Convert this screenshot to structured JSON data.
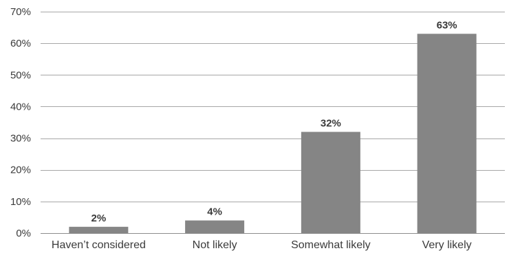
{
  "chart_data": {
    "type": "bar",
    "title": "",
    "xlabel": "",
    "ylabel": "",
    "categories": [
      "Haven’t considered",
      "Not likely",
      "Somewhat likely",
      "Very likely"
    ],
    "values": [
      2,
      4,
      32,
      63
    ],
    "data_labels": [
      "2%",
      "4%",
      "32%",
      "63%"
    ],
    "ylim": [
      0,
      70
    ],
    "yticks": [
      0,
      10,
      20,
      30,
      40,
      50,
      60,
      70
    ],
    "ytick_labels": [
      "0%",
      "10%",
      "20%",
      "30%",
      "40%",
      "50%",
      "60%",
      "70%"
    ],
    "grid": true,
    "legend": "none",
    "colors": {
      "bar": "#858585",
      "grid": "#a6a6a6",
      "text": "#3a3a3a"
    }
  }
}
